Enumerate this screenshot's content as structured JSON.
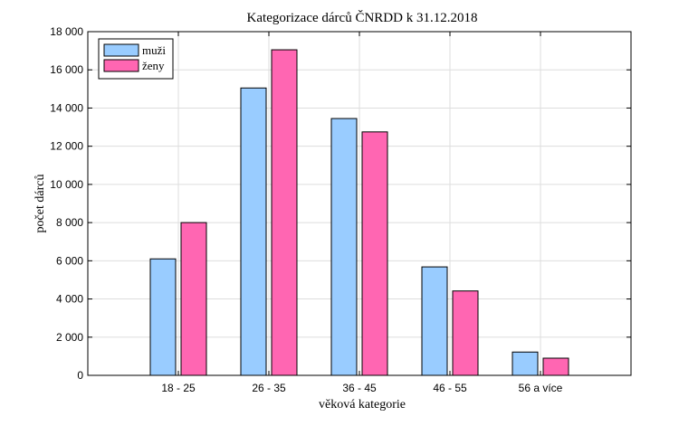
{
  "chart_data": {
    "type": "bar",
    "title": "Kategorizace dárců ČNRDD k 31.12.2018",
    "xlabel": "věková kategorie",
    "ylabel": "počet dárců",
    "categories": [
      "18 - 25",
      "26 - 35",
      "36 - 45",
      "46 - 55",
      "56 a více"
    ],
    "series": [
      {
        "name": "muži",
        "color": "#99ccff",
        "values": [
          6100,
          15050,
          13450,
          5680,
          1220
        ]
      },
      {
        "name": "ženy",
        "color": "#ff66b2",
        "values": [
          8000,
          17050,
          12750,
          4420,
          900
        ]
      }
    ],
    "ylim": [
      0,
      18000
    ],
    "yticks": [
      0,
      2000,
      4000,
      6000,
      8000,
      10000,
      12000,
      14000,
      16000,
      18000
    ],
    "ytick_labels": [
      "0",
      "2 000",
      "4 000",
      "6 000",
      "8 000",
      "10 000",
      "12 000",
      "14 000",
      "16 000",
      "18 000"
    ],
    "grid": true,
    "legend_position": "top-left"
  }
}
